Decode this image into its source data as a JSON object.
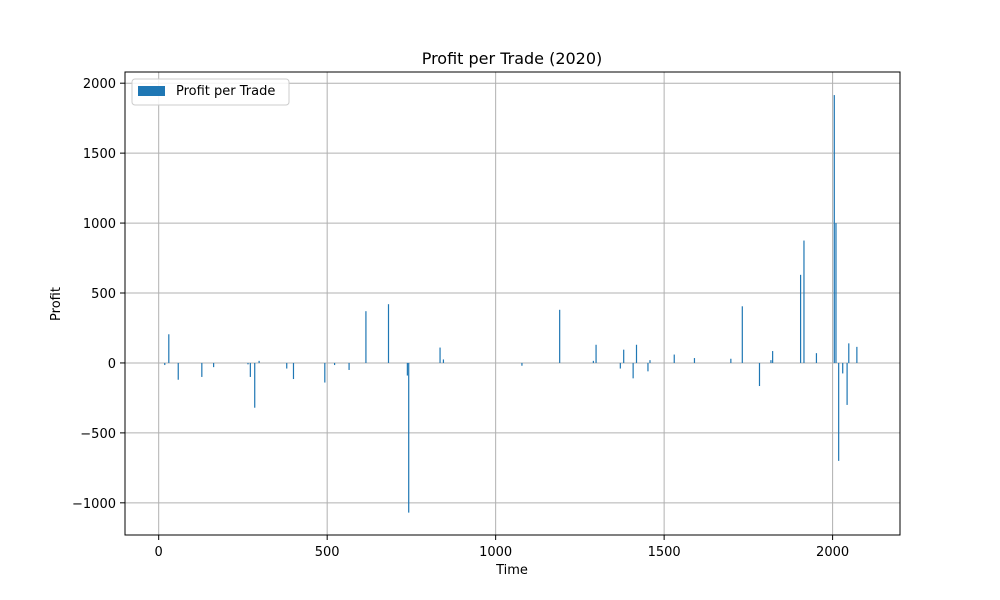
{
  "chart_data": {
    "type": "bar",
    "title": "Profit per Trade (2020)",
    "xlabel": "Time",
    "ylabel": "Profit",
    "xlim": [
      -100,
      2200
    ],
    "ylim": [
      -1230,
      2080
    ],
    "xticks": [
      0,
      500,
      1000,
      1500,
      2000
    ],
    "yticks": [
      -1000,
      -500,
      0,
      500,
      1000,
      1500,
      2000
    ],
    "grid": true,
    "legend_position": "top-left",
    "series": [
      {
        "name": "Profit per Trade",
        "color": "#1f77b4",
        "x": [
          18,
          30,
          58,
          128,
          163,
          265,
          272,
          285,
          298,
          380,
          400,
          493,
          522,
          565,
          615,
          682,
          738,
          742,
          835,
          845,
          1078,
          1190,
          1290,
          1298,
          1370,
          1380,
          1408,
          1418,
          1452,
          1458,
          1530,
          1590,
          1698,
          1732,
          1783,
          1817,
          1822,
          1905,
          1915,
          1952,
          2005,
          2010,
          2018,
          2030,
          2043,
          2048,
          2072
        ],
        "values": [
          -15,
          205,
          -120,
          -100,
          -30,
          -10,
          -100,
          -320,
          15,
          -40,
          -115,
          -140,
          -15,
          -50,
          370,
          420,
          -90,
          -1070,
          110,
          25,
          -20,
          380,
          15,
          130,
          -40,
          95,
          -110,
          130,
          -60,
          20,
          60,
          35,
          30,
          405,
          -165,
          20,
          85,
          630,
          875,
          70,
          1915,
          1000,
          -700,
          -75,
          -300,
          140,
          115
        ]
      }
    ]
  }
}
